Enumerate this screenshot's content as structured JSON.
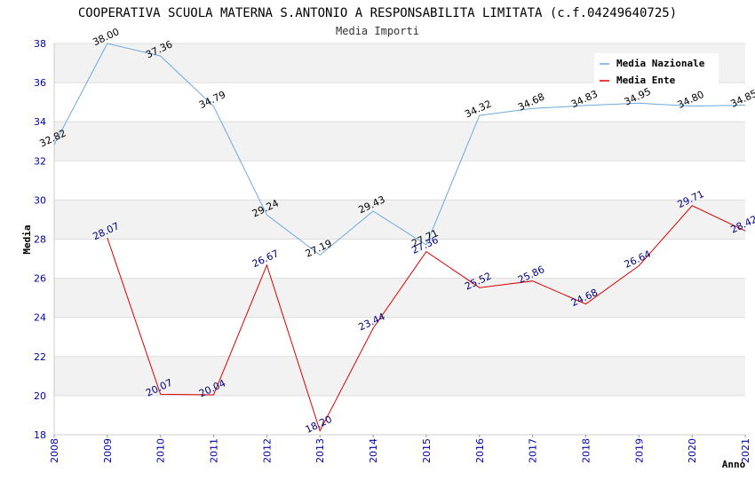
{
  "chart_data": {
    "type": "line",
    "title": "COOPERATIVA SCUOLA MATERNA S.ANTONIO A RESPONSABILITA LIMITATA (c.f.04249640725)",
    "subtitle": "Media Importi",
    "xlabel": "Anno",
    "ylabel": "Media",
    "x": [
      "2008",
      "2009",
      "2010",
      "2011",
      "2012",
      "2013",
      "2014",
      "2015",
      "2016",
      "2017",
      "2018",
      "2019",
      "2020",
      "2021"
    ],
    "ylim": [
      18,
      38
    ],
    "yticks": [
      "18",
      "20",
      "22",
      "24",
      "26",
      "28",
      "30",
      "32",
      "34",
      "36",
      "38"
    ],
    "grid": true,
    "legend_position": "top-right",
    "series": [
      {
        "name": "Media Nazionale",
        "color": "#6fa8dc",
        "label_color": "#000000",
        "values": [
          32.82,
          38.0,
          37.36,
          34.79,
          29.24,
          27.19,
          29.43,
          27.71,
          34.32,
          34.68,
          34.83,
          34.95,
          34.8,
          34.85
        ],
        "labels": [
          "32.82",
          "38.00",
          "37.36",
          "34.79",
          "29.24",
          "27.19",
          "29.43",
          "27.71",
          "34.32",
          "34.68",
          "34.83",
          "34.95",
          "34.80",
          "34.85"
        ]
      },
      {
        "name": "Media Ente",
        "color": "#dd0000",
        "label_color": "#000080",
        "values": [
          null,
          28.07,
          20.07,
          20.04,
          26.67,
          18.2,
          23.44,
          27.36,
          25.52,
          25.86,
          24.68,
          26.64,
          29.71,
          28.42
        ],
        "labels": [
          "",
          "28.07",
          "20.07",
          "20.04",
          "26.67",
          "18.20",
          "23.44",
          "27.36",
          "25.52",
          "25.86",
          "24.68",
          "26.64",
          "29.71",
          "28.42"
        ]
      }
    ]
  }
}
